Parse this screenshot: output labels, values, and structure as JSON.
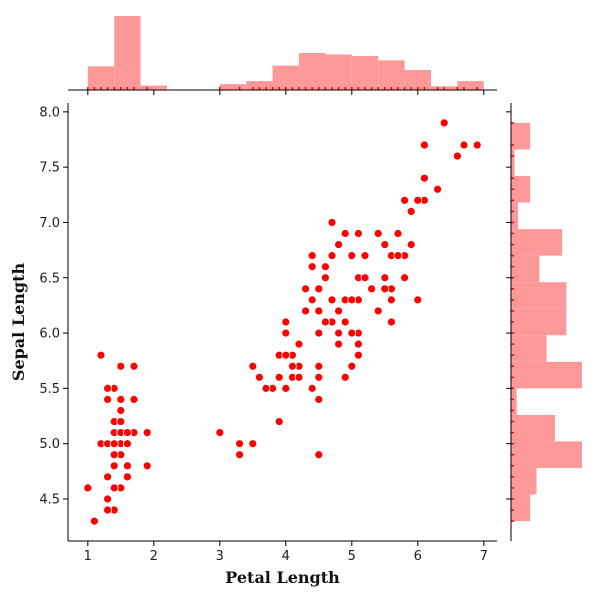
{
  "chart_data": {
    "type": "scatter",
    "title": "",
    "xlabel": "Petal Length",
    "ylabel": "Sepal Length",
    "xlim": [
      0.7,
      7.2
    ],
    "ylim": [
      4.12,
      8.08
    ],
    "xticks": [
      1,
      2,
      3,
      4,
      5,
      6,
      7
    ],
    "xtick_labels": [
      "1",
      "2",
      "3",
      "4",
      "5",
      "6",
      "7"
    ],
    "yticks": [
      4.5,
      5.0,
      5.5,
      6.0,
      6.5,
      7.0,
      7.5,
      8.0
    ],
    "ytick_labels": [
      "4.5",
      "5.0",
      "5.5",
      "6.0",
      "6.5",
      "7.0",
      "7.5",
      "8.0"
    ],
    "grid": false,
    "point_color": "#ff0000",
    "marginal_color": "#ff9999",
    "marginal_top": {
      "type": "histogram",
      "variable": "Petal Length",
      "bins": [
        {
          "start": 1.0,
          "end": 1.4,
          "height": 0.32
        },
        {
          "start": 1.4,
          "end": 1.8,
          "height": 1.0
        },
        {
          "start": 1.8,
          "end": 2.2,
          "height": 0.06
        },
        {
          "start": 3.0,
          "end": 3.4,
          "height": 0.08
        },
        {
          "start": 3.4,
          "end": 3.8,
          "height": 0.12
        },
        {
          "start": 3.8,
          "end": 4.2,
          "height": 0.33
        },
        {
          "start": 4.2,
          "end": 4.6,
          "height": 0.5
        },
        {
          "start": 4.6,
          "end": 5.0,
          "height": 0.48
        },
        {
          "start": 5.0,
          "end": 5.4,
          "height": 0.46
        },
        {
          "start": 5.4,
          "end": 5.8,
          "height": 0.4
        },
        {
          "start": 5.8,
          "end": 6.2,
          "height": 0.27
        },
        {
          "start": 6.2,
          "end": 6.6,
          "height": 0.05
        },
        {
          "start": 6.6,
          "end": 7.0,
          "height": 0.12
        }
      ]
    },
    "marginal_right": {
      "type": "histogram",
      "variable": "Sepal Length",
      "bins": [
        {
          "start": 4.3,
          "end": 4.54,
          "height": 0.27
        },
        {
          "start": 4.54,
          "end": 4.78,
          "height": 0.36
        },
        {
          "start": 4.78,
          "end": 5.02,
          "height": 1.0
        },
        {
          "start": 5.02,
          "end": 5.26,
          "height": 0.62
        },
        {
          "start": 5.26,
          "end": 5.5,
          "height": 0.08
        },
        {
          "start": 5.5,
          "end": 5.74,
          "height": 1.0
        },
        {
          "start": 5.74,
          "end": 5.98,
          "height": 0.5
        },
        {
          "start": 5.98,
          "end": 6.22,
          "height": 0.78
        },
        {
          "start": 6.22,
          "end": 6.46,
          "height": 0.78
        },
        {
          "start": 6.46,
          "end": 6.7,
          "height": 0.4
        },
        {
          "start": 6.7,
          "end": 6.94,
          "height": 0.72
        },
        {
          "start": 6.94,
          "end": 7.18,
          "height": 0.1
        },
        {
          "start": 7.18,
          "end": 7.42,
          "height": 0.27
        },
        {
          "start": 7.42,
          "end": 7.66,
          "height": 0.05
        },
        {
          "start": 7.66,
          "end": 7.9,
          "height": 0.27
        }
      ]
    },
    "series": [
      {
        "points": [
          [
            1.4,
            5.1
          ],
          [
            1.4,
            4.9
          ],
          [
            1.3,
            4.7
          ],
          [
            1.5,
            4.6
          ],
          [
            1.4,
            5.0
          ],
          [
            1.7,
            5.4
          ],
          [
            1.4,
            4.6
          ],
          [
            1.5,
            5.0
          ],
          [
            1.4,
            4.4
          ],
          [
            1.5,
            4.9
          ],
          [
            1.5,
            5.4
          ],
          [
            1.6,
            4.8
          ],
          [
            1.4,
            4.8
          ],
          [
            1.1,
            4.3
          ],
          [
            1.2,
            5.8
          ],
          [
            1.5,
            5.7
          ],
          [
            1.3,
            5.4
          ],
          [
            1.4,
            5.1
          ],
          [
            1.7,
            5.7
          ],
          [
            1.5,
            5.1
          ],
          [
            1.7,
            5.4
          ],
          [
            1.5,
            5.1
          ],
          [
            1.0,
            4.6
          ],
          [
            1.7,
            5.1
          ],
          [
            1.9,
            4.8
          ],
          [
            1.6,
            5.0
          ],
          [
            1.6,
            5.0
          ],
          [
            1.5,
            5.2
          ],
          [
            1.4,
            5.2
          ],
          [
            1.6,
            4.7
          ],
          [
            1.6,
            4.8
          ],
          [
            1.5,
            5.4
          ],
          [
            1.5,
            5.2
          ],
          [
            1.4,
            5.5
          ],
          [
            1.5,
            4.9
          ],
          [
            1.2,
            5.0
          ],
          [
            1.3,
            5.5
          ],
          [
            1.4,
            4.9
          ],
          [
            1.3,
            4.4
          ],
          [
            1.5,
            5.1
          ],
          [
            1.3,
            5.0
          ],
          [
            1.3,
            4.5
          ],
          [
            1.3,
            4.4
          ],
          [
            1.6,
            5.0
          ],
          [
            1.9,
            5.1
          ],
          [
            1.4,
            4.8
          ],
          [
            1.6,
            5.1
          ],
          [
            1.4,
            4.6
          ],
          [
            1.5,
            5.3
          ],
          [
            1.4,
            5.0
          ],
          [
            4.7,
            7.0
          ],
          [
            4.5,
            6.4
          ],
          [
            4.9,
            6.9
          ],
          [
            4.0,
            5.5
          ],
          [
            4.6,
            6.5
          ],
          [
            4.5,
            5.7
          ],
          [
            4.7,
            6.3
          ],
          [
            3.3,
            4.9
          ],
          [
            4.6,
            6.6
          ],
          [
            3.9,
            5.2
          ],
          [
            3.5,
            5.0
          ],
          [
            4.2,
            5.9
          ],
          [
            4.0,
            6.0
          ],
          [
            4.7,
            6.1
          ],
          [
            3.6,
            5.6
          ],
          [
            4.4,
            6.7
          ],
          [
            4.5,
            5.6
          ],
          [
            4.1,
            5.8
          ],
          [
            4.5,
            6.2
          ],
          [
            3.9,
            5.6
          ],
          [
            4.8,
            5.9
          ],
          [
            4.0,
            6.1
          ],
          [
            4.9,
            6.3
          ],
          [
            4.7,
            6.1
          ],
          [
            4.3,
            6.4
          ],
          [
            4.4,
            6.6
          ],
          [
            4.8,
            6.8
          ],
          [
            5.0,
            6.7
          ],
          [
            4.5,
            6.0
          ],
          [
            3.5,
            5.7
          ],
          [
            3.8,
            5.5
          ],
          [
            3.7,
            5.5
          ],
          [
            3.9,
            5.8
          ],
          [
            5.1,
            6.0
          ],
          [
            4.5,
            5.4
          ],
          [
            4.5,
            6.0
          ],
          [
            4.7,
            6.7
          ],
          [
            4.4,
            6.3
          ],
          [
            4.1,
            5.6
          ],
          [
            4.0,
            5.5
          ],
          [
            4.4,
            5.5
          ],
          [
            4.6,
            6.1
          ],
          [
            4.0,
            5.8
          ],
          [
            3.3,
            5.0
          ],
          [
            4.2,
            5.6
          ],
          [
            4.2,
            5.7
          ],
          [
            4.2,
            5.7
          ],
          [
            4.3,
            6.2
          ],
          [
            3.0,
            5.1
          ],
          [
            4.1,
            5.7
          ],
          [
            6.0,
            6.3
          ],
          [
            5.1,
            5.8
          ],
          [
            5.9,
            7.1
          ],
          [
            5.6,
            6.3
          ],
          [
            5.8,
            6.5
          ],
          [
            6.6,
            7.6
          ],
          [
            4.5,
            4.9
          ],
          [
            6.3,
            7.3
          ],
          [
            5.8,
            6.7
          ],
          [
            6.1,
            7.2
          ],
          [
            5.1,
            6.5
          ],
          [
            5.3,
            6.4
          ],
          [
            5.5,
            6.8
          ],
          [
            5.0,
            5.7
          ],
          [
            5.1,
            5.8
          ],
          [
            5.3,
            6.4
          ],
          [
            5.5,
            6.5
          ],
          [
            6.7,
            7.7
          ],
          [
            6.9,
            7.7
          ],
          [
            5.0,
            6.0
          ],
          [
            5.7,
            6.9
          ],
          [
            4.9,
            5.6
          ],
          [
            6.7,
            7.7
          ],
          [
            4.9,
            6.3
          ],
          [
            5.7,
            6.7
          ],
          [
            6.0,
            7.2
          ],
          [
            4.8,
            6.2
          ],
          [
            4.9,
            6.1
          ],
          [
            5.6,
            6.4
          ],
          [
            5.8,
            7.2
          ],
          [
            6.1,
            7.4
          ],
          [
            6.4,
            7.9
          ],
          [
            5.6,
            6.4
          ],
          [
            5.1,
            6.3
          ],
          [
            5.6,
            6.1
          ],
          [
            6.1,
            7.7
          ],
          [
            5.6,
            6.3
          ],
          [
            5.5,
            6.4
          ],
          [
            4.8,
            6.0
          ],
          [
            5.4,
            6.9
          ],
          [
            5.6,
            6.7
          ],
          [
            5.1,
            6.9
          ],
          [
            5.1,
            5.8
          ],
          [
            5.9,
            6.8
          ],
          [
            5.7,
            6.7
          ],
          [
            5.2,
            6.7
          ],
          [
            5.0,
            6.3
          ],
          [
            5.2,
            6.5
          ],
          [
            5.4,
            6.2
          ],
          [
            5.1,
            5.9
          ]
        ]
      }
    ]
  }
}
